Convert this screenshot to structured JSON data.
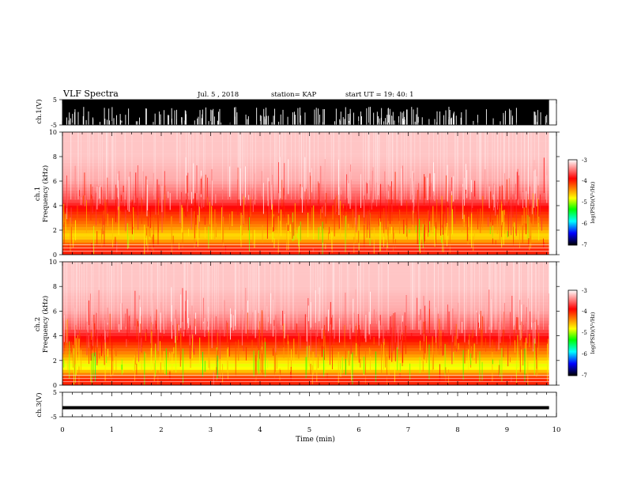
{
  "header": {
    "title": "VLF Spectra",
    "date": "Jul. 5 , 2018",
    "station": "station= KAP",
    "start": "start UT = 19: 40: 1"
  },
  "colorbar": {
    "label": "log(PSD)(V²/Hz)",
    "ticks": [
      "-3",
      "-4",
      "-5",
      "-6",
      "-7"
    ],
    "colors": [
      "#ffffff",
      "#ff0000",
      "#ffff00",
      "#00ff00",
      "#00ffff",
      "#0000ff",
      "#000000"
    ]
  },
  "chart_data": [
    {
      "type": "line",
      "name": "ch1-waveform",
      "ylabel": "ch.1(V)",
      "ylim": [
        -5,
        5
      ],
      "ytick_labels": [
        "5",
        "-5"
      ],
      "x": [
        0,
        1,
        2,
        3,
        4,
        5,
        6,
        7,
        8,
        9,
        9.85
      ],
      "description_note": "",
      "envelope_high": [
        5,
        5,
        5,
        5,
        5,
        5,
        5,
        5,
        5,
        5,
        5
      ],
      "envelope_low": [
        -5,
        -5,
        -5,
        -5,
        -5,
        -5,
        -5,
        -5,
        -5,
        -5,
        -5
      ]
    },
    {
      "type": "heatmap",
      "name": "ch1-spectrogram",
      "ylabel": "ch.1",
      "ylabel2": "Frequency (kHz)",
      "ylim": [
        0,
        10
      ],
      "ytick_labels": [
        "0",
        "2",
        "4",
        "6",
        "8",
        "10"
      ],
      "xlim": [
        0,
        10
      ],
      "data_end_min": 9.85,
      "band_profile": [
        {
          "freq_khz": 0.5,
          "log_psd": -4.0
        },
        {
          "freq_khz": 1.5,
          "log_psd": -4.7
        },
        {
          "freq_khz": 2.5,
          "log_psd": -4.3
        },
        {
          "freq_khz": 3.5,
          "log_psd": -4.0
        },
        {
          "freq_khz": 4.5,
          "log_psd": -3.6
        },
        {
          "freq_khz": 6.0,
          "log_psd": -3.3
        },
        {
          "freq_khz": 8.0,
          "log_psd": -3.2
        },
        {
          "freq_khz": 9.5,
          "log_psd": -3.2
        }
      ]
    },
    {
      "type": "heatmap",
      "name": "ch2-spectrogram",
      "ylabel": "ch.2",
      "ylabel2": "Frequency (kHz)",
      "ylim": [
        0,
        10
      ],
      "ytick_labels": [
        "0",
        "2",
        "4",
        "6",
        "8",
        "10"
      ],
      "xlim": [
        0,
        10
      ],
      "data_end_min": 9.85,
      "band_profile": [
        {
          "freq_khz": 0.5,
          "log_psd": -4.0
        },
        {
          "freq_khz": 1.5,
          "log_psd": -4.9
        },
        {
          "freq_khz": 2.5,
          "log_psd": -4.4
        },
        {
          "freq_khz": 3.5,
          "log_psd": -4.0
        },
        {
          "freq_khz": 4.5,
          "log_psd": -3.6
        },
        {
          "freq_khz": 6.0,
          "log_psd": -3.3
        },
        {
          "freq_khz": 8.0,
          "log_psd": -3.2
        },
        {
          "freq_khz": 9.5,
          "log_psd": -3.2
        }
      ]
    },
    {
      "type": "line",
      "name": "ch3-waveform",
      "ylabel": "ch.3(V)",
      "ylim": [
        -5,
        5
      ],
      "ytick_labels": [
        "5",
        "-5"
      ],
      "x": [
        0,
        9.85
      ],
      "y": [
        -1.3,
        -1.3
      ]
    }
  ],
  "xaxis": {
    "label": "Time (min)",
    "xlim": [
      0,
      10
    ],
    "ticks": [
      "0",
      "1",
      "2",
      "3",
      "4",
      "5",
      "6",
      "7",
      "8",
      "9",
      "10"
    ]
  }
}
